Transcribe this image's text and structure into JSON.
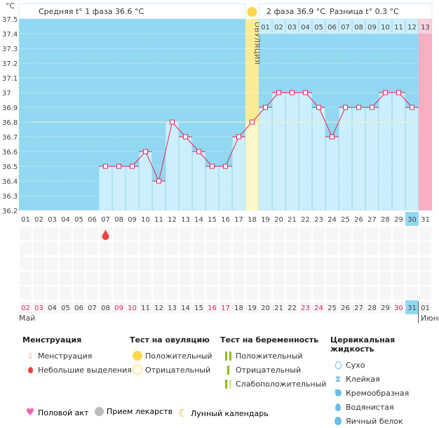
{
  "chart_data": {
    "type": "line",
    "yunit": "°C",
    "ylim": [
      36.2,
      37.5
    ],
    "yticks": [
      "37.5",
      "37.4",
      "37.3",
      "37.2",
      "37.1",
      "37",
      "36.9",
      "36.8",
      "36.7",
      "36.6",
      "36.5",
      "36.4",
      "36.3",
      "36.2"
    ],
    "cycle_days": [
      "01",
      "02",
      "03",
      "04",
      "05",
      "06",
      "07",
      "08",
      "09",
      "10",
      "11",
      "12",
      "13",
      "14",
      "15",
      "16",
      "17",
      "18",
      "19",
      "20",
      "21",
      "22",
      "23",
      "24",
      "25",
      "26",
      "27",
      "28",
      "29",
      "30",
      "31"
    ],
    "temperatures": [
      null,
      null,
      null,
      null,
      null,
      null,
      36.5,
      36.5,
      36.5,
      36.6,
      36.4,
      36.8,
      36.7,
      36.6,
      36.5,
      36.5,
      36.7,
      36.8,
      36.9,
      37.0,
      37.0,
      37.0,
      36.9,
      36.7,
      36.9,
      36.9,
      36.9,
      37.0,
      37.0,
      36.9,
      null
    ],
    "coverline": 36.8,
    "ovulation_day": "18",
    "ovulation_label": "ОВУЛЯЦИЯ",
    "phase2_days": [
      "01",
      "02",
      "03",
      "04",
      "05",
      "06",
      "07",
      "08",
      "09",
      "10",
      "11",
      "12",
      "13"
    ],
    "current_cycle_day": "30",
    "phase1_avg": "Средняя t° 1 фаза 36.6 °С",
    "phase2_avg": "2 фаза 36.9 °С",
    "difference": "Разница t° 0.3 °С",
    "dates": [
      "02",
      "03",
      "04",
      "05",
      "06",
      "07",
      "08",
      "09",
      "10",
      "11",
      "12",
      "13",
      "14",
      "15",
      "16",
      "17",
      "18",
      "19",
      "20",
      "21",
      "22",
      "23",
      "24",
      "25",
      "26",
      "27",
      "28",
      "29",
      "30",
      "31",
      "01"
    ],
    "weekend_dates": [
      "02",
      "03",
      "09",
      "10",
      "16",
      "17",
      "23",
      "24",
      "30"
    ],
    "current_date": "31",
    "month1": "Май",
    "month2": "Июнь",
    "menstruation_marks": [
      "07"
    ],
    "colors": {
      "bg": "#92d8f2",
      "bar": "#cdeefb",
      "line": "#e8245a",
      "ovulation": "#fbec94",
      "period": "#f9aec4",
      "weekend": "#e8245a",
      "drop": "#f04040"
    }
  },
  "legend": {
    "menstruation": {
      "title": "Менструация",
      "items": [
        "Менструация",
        "Небольшие выделения"
      ]
    },
    "ovulation_test": {
      "title": "Тест на овуляцию",
      "items": [
        "Положительный",
        "Отрицательный"
      ]
    },
    "pregnancy_test": {
      "title": "Тест на беременность",
      "items": [
        "Положительный",
        "Отрицательный",
        "Слабоположительный"
      ]
    },
    "cervical": {
      "title": "Цервикальная жидкость",
      "items": [
        "Сухо",
        "Клейкая",
        "Кремообразная",
        "Водянистая",
        "Яичный белок"
      ]
    },
    "bottom": [
      "Половой акт",
      "Прием лекарств",
      "Лунный календарь"
    ]
  }
}
